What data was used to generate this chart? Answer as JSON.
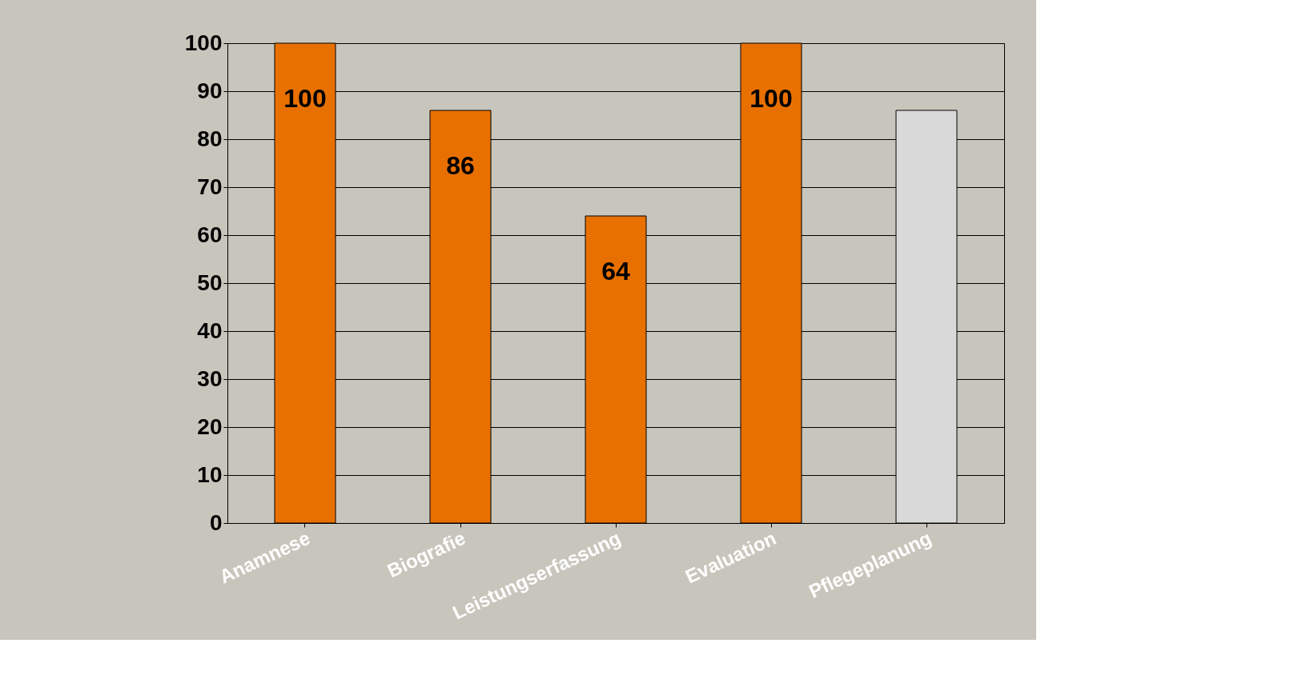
{
  "chart_data": {
    "type": "bar",
    "categories": [
      "Anamnese",
      "Biografie",
      "Leistungserfassung",
      "Evaluation",
      "Pflegeplanung"
    ],
    "values": [
      100,
      86,
      64,
      100,
      86
    ],
    "colors": [
      "#e87000",
      "#e87000",
      "#e87000",
      "#e87000",
      "#d9d9d9"
    ],
    "value_labels": [
      "100",
      "86",
      "64",
      "100",
      null
    ],
    "ylim": [
      0,
      100
    ],
    "yticks": [
      0,
      10,
      20,
      30,
      40,
      50,
      60,
      70,
      80,
      90,
      100
    ],
    "grid": "y"
  }
}
